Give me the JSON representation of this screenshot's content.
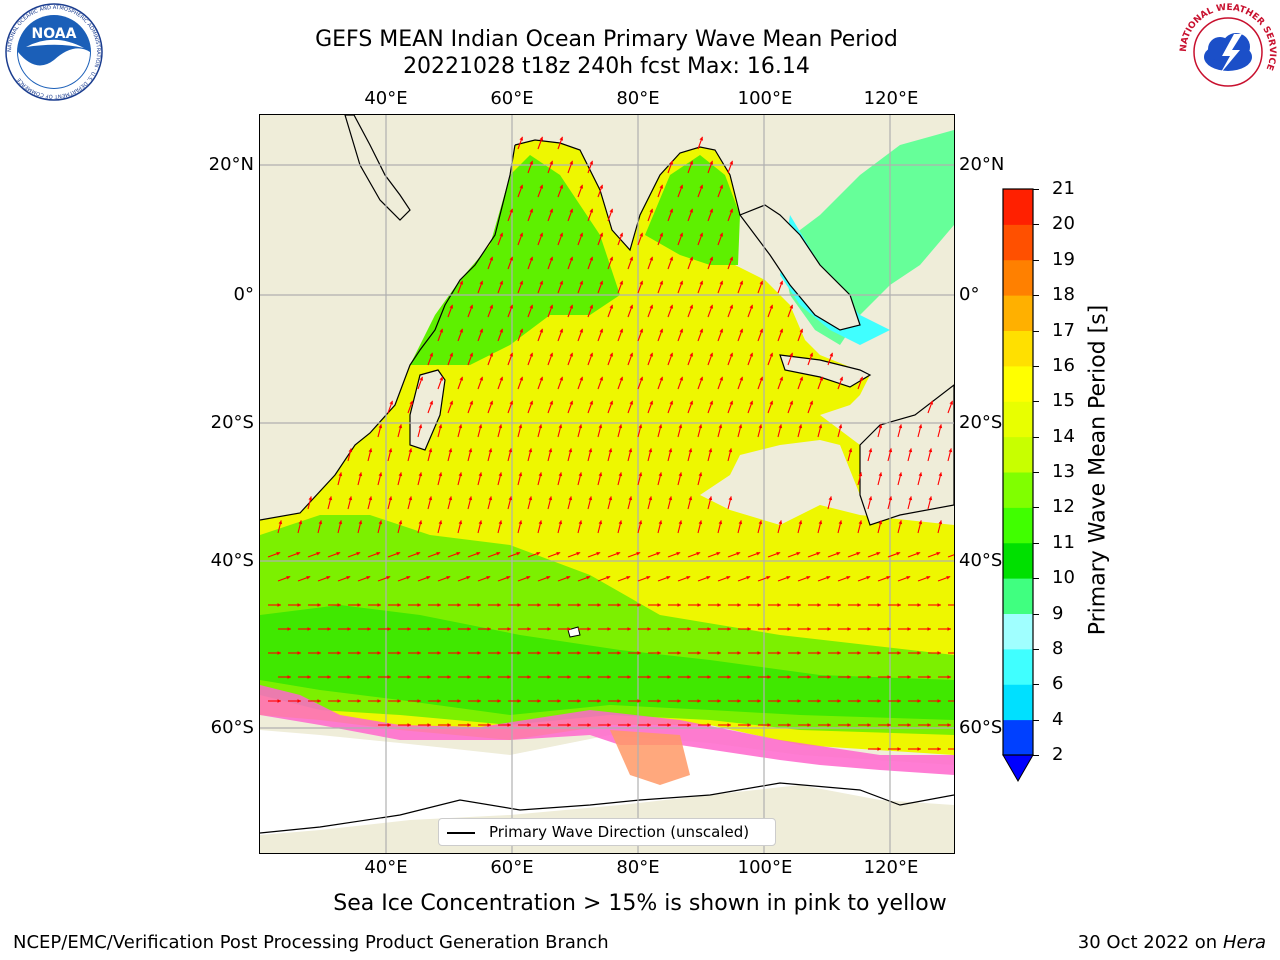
{
  "title": {
    "line1": "GEFS MEAN Indian Ocean Primary Wave Mean Period",
    "line2": "20221028 t18z 240h fcst   Max: 16.14"
  },
  "map": {
    "lon_ticks": [
      "40°E",
      "60°E",
      "80°E",
      "100°E",
      "120°E"
    ],
    "lat_ticks": [
      "20°N",
      "0°",
      "20°S",
      "40°S",
      "60°S"
    ],
    "lon_range": [
      20,
      130
    ],
    "lat_range": [
      -72,
      24
    ]
  },
  "colorbar": {
    "label": "Primary Wave Mean Period [s]",
    "ticks": [
      "2",
      "4",
      "6",
      "8",
      "9",
      "10",
      "11",
      "12",
      "13",
      "14",
      "15",
      "16",
      "17",
      "18",
      "19",
      "20",
      "21"
    ],
    "colors": [
      "#0040ff",
      "#00e0ff",
      "#40ffff",
      "#a0ffff",
      "#40ff80",
      "#00e000",
      "#40ff00",
      "#80ff00",
      "#c8ff00",
      "#e8ff00",
      "#ffff00",
      "#ffe000",
      "#ffb000",
      "#ff8000",
      "#ff5000",
      "#ff2000"
    ]
  },
  "legend": {
    "label": "Primary Wave Direction (unscaled)"
  },
  "subtitle": "Sea Ice Concentration > 15% is shown in pink to yellow",
  "footer": {
    "left": "NCEP/EMC/Verification Post Processing Product Generation Branch",
    "right_prefix": "30 Oct 2022 on ",
    "right_host": "Hera"
  },
  "logos": {
    "noaa": {
      "word": "NOAA",
      "ring": "NATIONAL OCEANIC AND ATMOSPHERIC ADMINISTRATION · U.S. DEPARTMENT OF COMMERCE"
    },
    "nws": {
      "ring": "NATIONAL WEATHER SERVICE"
    }
  },
  "colors": {
    "land": "#efedd9",
    "arrow": "#ff0000",
    "grid": "#b0b0b0"
  }
}
